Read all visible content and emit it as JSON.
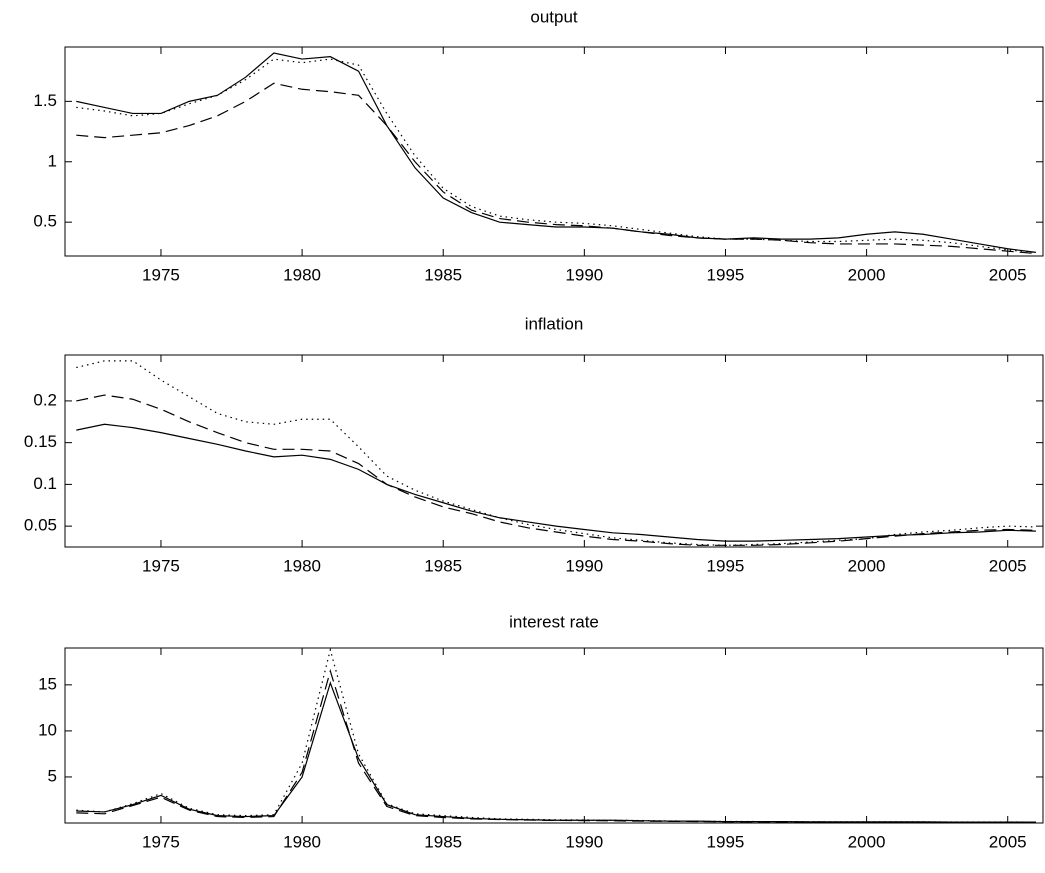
{
  "chart_data": [
    {
      "type": "line",
      "title": "output",
      "x": [
        1972,
        1973,
        1974,
        1975,
        1976,
        1977,
        1978,
        1979,
        1980,
        1981,
        1982,
        1983,
        1984,
        1985,
        1986,
        1987,
        1988,
        1989,
        1990,
        1991,
        1992,
        1993,
        1994,
        1995,
        1996,
        1997,
        1998,
        1999,
        2000,
        2001,
        2002,
        2003,
        2004,
        2005,
        2006
      ],
      "xlim": [
        1971.6,
        2006.25
      ],
      "xticks": [
        1975,
        1980,
        1985,
        1990,
        1995,
        2000,
        2005
      ],
      "ylim": [
        0.22,
        1.95
      ],
      "yticks": [
        0.5,
        1,
        1.5
      ],
      "series": [
        {
          "color": "#000000",
          "dash": "solid",
          "values": [
            1.5,
            1.45,
            1.4,
            1.4,
            1.5,
            1.55,
            1.7,
            1.9,
            1.85,
            1.87,
            1.75,
            1.3,
            0.95,
            0.7,
            0.58,
            0.5,
            0.48,
            0.46,
            0.46,
            0.45,
            0.42,
            0.4,
            0.37,
            0.36,
            0.37,
            0.36,
            0.36,
            0.37,
            0.4,
            0.42,
            0.4,
            0.36,
            0.32,
            0.28,
            0.25
          ]
        },
        {
          "color": "#000000",
          "dash": "dashed",
          "values": [
            1.22,
            1.2,
            1.22,
            1.24,
            1.3,
            1.38,
            1.5,
            1.65,
            1.6,
            1.58,
            1.55,
            1.3,
            1.0,
            0.75,
            0.6,
            0.53,
            0.5,
            0.48,
            0.47,
            0.45,
            0.42,
            0.39,
            0.37,
            0.36,
            0.36,
            0.35,
            0.33,
            0.32,
            0.32,
            0.32,
            0.31,
            0.3,
            0.28,
            0.26,
            0.24
          ]
        },
        {
          "color": "#000000",
          "dash": "dotted",
          "values": [
            1.45,
            1.42,
            1.38,
            1.4,
            1.48,
            1.55,
            1.68,
            1.85,
            1.82,
            1.85,
            1.8,
            1.4,
            1.05,
            0.78,
            0.63,
            0.55,
            0.52,
            0.5,
            0.49,
            0.47,
            0.44,
            0.41,
            0.38,
            0.36,
            0.36,
            0.35,
            0.34,
            0.34,
            0.35,
            0.36,
            0.35,
            0.33,
            0.3,
            0.27,
            0.25
          ]
        }
      ]
    },
    {
      "type": "line",
      "title": "inflation",
      "x": [
        1972,
        1973,
        1974,
        1975,
        1976,
        1977,
        1978,
        1979,
        1980,
        1981,
        1982,
        1983,
        1984,
        1985,
        1986,
        1987,
        1988,
        1989,
        1990,
        1991,
        1992,
        1993,
        1994,
        1995,
        1996,
        1997,
        1998,
        1999,
        2000,
        2001,
        2002,
        2003,
        2004,
        2005,
        2006
      ],
      "xlim": [
        1971.6,
        2006.25
      ],
      "xticks": [
        1975,
        1980,
        1985,
        1990,
        1995,
        2000,
        2005
      ],
      "ylim": [
        0.025,
        0.255
      ],
      "yticks": [
        0.05,
        0.1,
        0.15,
        0.2
      ],
      "series": [
        {
          "color": "#000000",
          "dash": "solid",
          "values": [
            0.165,
            0.172,
            0.168,
            0.162,
            0.155,
            0.148,
            0.14,
            0.133,
            0.135,
            0.13,
            0.118,
            0.1,
            0.088,
            0.078,
            0.068,
            0.06,
            0.055,
            0.05,
            0.046,
            0.042,
            0.04,
            0.037,
            0.034,
            0.032,
            0.032,
            0.033,
            0.034,
            0.035,
            0.037,
            0.039,
            0.04,
            0.042,
            0.043,
            0.045,
            0.044
          ]
        },
        {
          "color": "#000000",
          "dash": "dashed",
          "values": [
            0.2,
            0.207,
            0.202,
            0.19,
            0.175,
            0.162,
            0.15,
            0.142,
            0.142,
            0.14,
            0.125,
            0.1,
            0.085,
            0.073,
            0.065,
            0.055,
            0.048,
            0.043,
            0.038,
            0.034,
            0.032,
            0.029,
            0.027,
            0.027,
            0.027,
            0.028,
            0.03,
            0.032,
            0.035,
            0.038,
            0.041,
            0.043,
            0.045,
            0.046,
            0.045
          ]
        },
        {
          "color": "#000000",
          "dash": "dotted",
          "values": [
            0.24,
            0.248,
            0.248,
            0.225,
            0.205,
            0.185,
            0.175,
            0.172,
            0.178,
            0.178,
            0.145,
            0.11,
            0.093,
            0.08,
            0.07,
            0.06,
            0.052,
            0.046,
            0.041,
            0.036,
            0.033,
            0.03,
            0.028,
            0.027,
            0.028,
            0.029,
            0.031,
            0.033,
            0.035,
            0.04,
            0.043,
            0.045,
            0.048,
            0.05,
            0.049
          ]
        }
      ]
    },
    {
      "type": "line",
      "title": "interest rate",
      "x": [
        1972,
        1973,
        1974,
        1975,
        1976,
        1977,
        1978,
        1979,
        1980,
        1981,
        1982,
        1983,
        1984,
        1985,
        1986,
        1987,
        1988,
        1989,
        1990,
        1991,
        1992,
        1993,
        1994,
        1995,
        1996,
        1997,
        1998,
        1999,
        2000,
        2001,
        2002,
        2003,
        2004,
        2005,
        2006
      ],
      "xlim": [
        1971.6,
        2006.25
      ],
      "xticks": [
        1975,
        1980,
        1985,
        1990,
        1995,
        2000,
        2005
      ],
      "ylim": [
        0,
        19
      ],
      "yticks": [
        5,
        10,
        15
      ],
      "series": [
        {
          "color": "#000000",
          "dash": "solid",
          "values": [
            1.3,
            1.2,
            2.0,
            3.0,
            1.5,
            0.8,
            0.7,
            0.8,
            5.0,
            15.2,
            7.0,
            2.0,
            0.9,
            0.7,
            0.5,
            0.4,
            0.35,
            0.3,
            0.3,
            0.3,
            0.25,
            0.2,
            0.2,
            0.15,
            0.15,
            0.15,
            0.12,
            0.12,
            0.12,
            0.12,
            0.12,
            0.1,
            0.1,
            0.1,
            0.1
          ]
        },
        {
          "color": "#000000",
          "dash": "dashed",
          "values": [
            1.1,
            1.0,
            1.9,
            2.8,
            1.4,
            0.7,
            0.6,
            0.7,
            5.5,
            16.5,
            6.5,
            1.8,
            0.8,
            0.6,
            0.45,
            0.38,
            0.32,
            0.28,
            0.26,
            0.24,
            0.2,
            0.18,
            0.16,
            0.14,
            0.13,
            0.12,
            0.11,
            0.1,
            0.1,
            0.1,
            0.1,
            0.09,
            0.09,
            0.09,
            0.09
          ]
        },
        {
          "color": "#000000",
          "dash": "dotted",
          "values": [
            1.4,
            1.2,
            2.1,
            3.2,
            1.6,
            0.9,
            0.8,
            0.9,
            6.5,
            18.8,
            7.5,
            2.1,
            1.0,
            0.8,
            0.6,
            0.45,
            0.4,
            0.35,
            0.33,
            0.3,
            0.27,
            0.22,
            0.2,
            0.16,
            0.16,
            0.15,
            0.13,
            0.13,
            0.13,
            0.13,
            0.12,
            0.11,
            0.11,
            0.11,
            0.1
          ]
        }
      ]
    }
  ]
}
